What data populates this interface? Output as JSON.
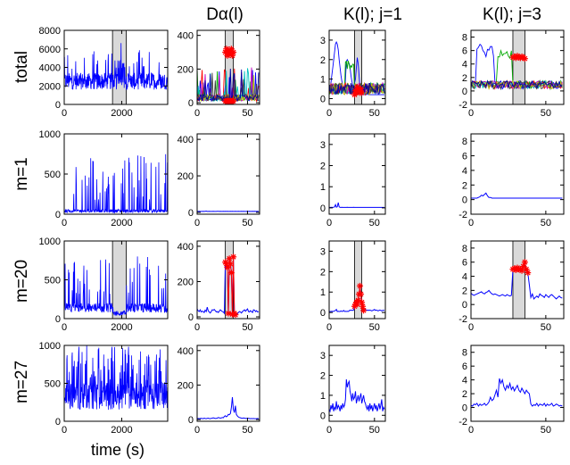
{
  "chart_data": {
    "type": "line",
    "column_titles": [
      "Dα(l)",
      "K(l); j=1",
      "K(l); j=3"
    ],
    "row_labels": [
      "total",
      "m=1",
      "m=20",
      "m=27"
    ],
    "xlabel": "time (s)",
    "colors": {
      "line": "#0000ff",
      "marker": "#ff0000",
      "shade": "#d9d9d9"
    },
    "grid": false,
    "columns": [
      {
        "name": "time",
        "xlim": [
          0,
          3600
        ],
        "xticks": [
          0,
          2000
        ],
        "ylims": [
          [
            0,
            8000
          ],
          [
            0,
            1000
          ],
          [
            0,
            1000
          ],
          [
            0,
            1000
          ]
        ],
        "yticks": [
          [
            0,
            2000,
            4000,
            6000,
            8000
          ],
          [
            0,
            500,
            1000
          ],
          [
            0,
            500,
            1000
          ],
          [
            0,
            500,
            1000
          ]
        ]
      },
      {
        "name": "D",
        "title_index": 0,
        "xlim": [
          0,
          62
        ],
        "xticks": [
          0,
          50
        ],
        "ylim": [
          -10,
          430
        ],
        "yticks": [
          0,
          200,
          400
        ]
      },
      {
        "name": "K1",
        "title_index": 1,
        "xlim": [
          0,
          62
        ],
        "xticks": [
          0,
          50
        ],
        "ylim": [
          -0.3,
          3.5
        ],
        "yticks": [
          0,
          1,
          2,
          3
        ]
      },
      {
        "name": "K3",
        "title_index": 2,
        "xlim": [
          0,
          62
        ],
        "xticks": [
          0,
          50
        ],
        "ylim": [
          -2,
          9
        ],
        "yticks": [
          -2,
          0,
          2,
          4,
          6,
          8
        ]
      }
    ],
    "shaded_window": {
      "time_s": [
        1680,
        2160
      ],
      "index": [
        28,
        36
      ],
      "rows": [
        "total",
        "m=20"
      ]
    },
    "series": {
      "m1": {
        "D": [
          5,
          5,
          6,
          5,
          5,
          5,
          6,
          5,
          6,
          7,
          5,
          5,
          6,
          5,
          5,
          5,
          6,
          5,
          5,
          5,
          6,
          6,
          5,
          6,
          5,
          5,
          6,
          5,
          6,
          5,
          6,
          5,
          5,
          6,
          5,
          6,
          5,
          5,
          6,
          5,
          5,
          6,
          5,
          5,
          6,
          5,
          6,
          5,
          5,
          5,
          6,
          5,
          6,
          5,
          5,
          6,
          5,
          6,
          5,
          5,
          6,
          5
        ],
        "K1": [
          0.02,
          0.02,
          0.02,
          0.03,
          0.02,
          0.03,
          0.05,
          0.15,
          0.03,
          0.05,
          0.25,
          0.05,
          0.02,
          0.02,
          0.03,
          0.02,
          0.02,
          0.02,
          0.02,
          0.02,
          0.03,
          0.02,
          0.02,
          0.02,
          0.02,
          0.02,
          0.02,
          0.03,
          0.02,
          0.02,
          0.02,
          0.02,
          0.02,
          0.02,
          0.02,
          0.02,
          0.02,
          0.02,
          0.02,
          0.02,
          0.02,
          0.02,
          0.02,
          0.02,
          0.02,
          0.02,
          0.02,
          0.02,
          0.02,
          0.02,
          0.02,
          0.02,
          0.02,
          0.02,
          0.02,
          0.02,
          0.02,
          0.02,
          0.02,
          0.02,
          0.02,
          0.02
        ],
        "K3": [
          0.2,
          0.2,
          0.2,
          0.2,
          0.2,
          0.3,
          0.4,
          0.6,
          0.5,
          0.7,
          0.9,
          0.5,
          0.3,
          0.3,
          0.2,
          0.2,
          0.2,
          0.2,
          0.2,
          0.2,
          0.2,
          0.2,
          0.2,
          0.2,
          0.2,
          0.2,
          0.2,
          0.2,
          0.2,
          0.2,
          0.2,
          0.2,
          0.2,
          0.2,
          0.2,
          0.2,
          0.2,
          0.2,
          0.2,
          0.2,
          0.2,
          0.2,
          0.2,
          0.2,
          0.2,
          0.2,
          0.2,
          0.2,
          0.2,
          0.2,
          0.2,
          0.2,
          0.2,
          0.2,
          0.2,
          0.2,
          0.2,
          0.2,
          0.2,
          0.2,
          0.2,
          0.2
        ]
      },
      "m20": {
        "D": [
          45,
          35,
          30,
          40,
          28,
          32,
          30,
          25,
          38,
          30,
          55,
          35,
          28,
          22,
          30,
          40,
          38,
          42,
          35,
          28,
          30,
          25,
          32,
          40,
          35,
          30,
          28,
          20,
          310,
          300,
          280,
          20,
          330,
          300,
          250,
          15,
          340,
          20,
          12,
          15,
          18,
          25,
          30,
          28,
          22,
          30,
          35,
          40,
          32,
          38,
          45,
          30,
          28,
          35,
          30,
          25,
          40,
          38,
          30,
          35,
          28,
          30
        ],
        "K1": [
          0.05,
          0.05,
          0.05,
          0.06,
          0.05,
          0.06,
          0.08,
          0.1,
          0.15,
          0.05,
          0.06,
          0.05,
          0.05,
          0.08,
          0.05,
          0.06,
          0.1,
          0.05,
          0.06,
          0.05,
          0.06,
          0.05,
          0.08,
          0.12,
          0.1,
          0.12,
          0.1,
          0.12,
          0.3,
          0.4,
          0.5,
          0.4,
          0.6,
          0.9,
          1.3,
          0.9,
          0.5,
          0.3,
          0.1,
          0.12,
          0.15,
          0.12,
          0.1,
          0.12,
          0.1,
          0.12,
          0.1,
          0.08,
          0.1,
          0.12,
          0.15,
          0.1,
          0.12,
          0.1,
          0.08,
          0.1,
          0.12,
          0.1,
          0.08,
          0.1,
          0.1,
          0.1
        ],
        "K3": [
          1.6,
          1.4,
          1.3,
          1.4,
          1.5,
          1.6,
          1.7,
          1.8,
          1.6,
          1.5,
          1.7,
          1.8,
          2.0,
          1.7,
          1.5,
          1.4,
          1.5,
          1.4,
          1.3,
          1.2,
          1.3,
          1.4,
          1.3,
          1.2,
          1.4,
          1.3,
          1.2,
          1.3,
          5.0,
          5.1,
          4.9,
          5.2,
          5.0,
          5.0,
          4.8,
          5.4,
          6.0,
          5.0,
          4.5,
          2.8,
          1.0,
          1.5,
          0.8,
          1.0,
          1.2,
          1.0,
          1.5,
          1.3,
          1.2,
          1.0,
          1.4,
          1.2,
          1.0,
          1.3,
          1.4,
          1.2,
          1.0,
          0.8,
          1.0,
          1.2,
          1.0,
          0.9
        ]
      },
      "m27": {
        "D": [
          5,
          6,
          5,
          6,
          7,
          6,
          5,
          8,
          6,
          5,
          7,
          8,
          6,
          5,
          7,
          8,
          10,
          8,
          6,
          7,
          8,
          12,
          10,
          8,
          9,
          12,
          10,
          18,
          22,
          16,
          20,
          30,
          28,
          35,
          70,
          130,
          60,
          40,
          80,
          30,
          20,
          15,
          12,
          10,
          8,
          7,
          9,
          8,
          7,
          6,
          8,
          7,
          6,
          5,
          6,
          5,
          6,
          5,
          5,
          5,
          6,
          5
        ],
        "K1": [
          0.3,
          0.2,
          0.5,
          0.3,
          0.6,
          0.2,
          0.4,
          0.3,
          0.7,
          0.3,
          0.5,
          0.4,
          0.2,
          0.5,
          0.3,
          0.6,
          0.4,
          0.5,
          0.8,
          1.8,
          1.4,
          1.6,
          1.7,
          1.2,
          1.0,
          0.7,
          1.1,
          0.8,
          0.9,
          1.2,
          0.6,
          0.8,
          1.0,
          0.7,
          0.9,
          1.1,
          0.6,
          0.8,
          1.0,
          0.7,
          0.6,
          0.4,
          0.3,
          0.5,
          0.2,
          0.6,
          0.3,
          0.5,
          0.2,
          0.4,
          0.6,
          0.3,
          0.5,
          0.2,
          0.4,
          0.6,
          0.3,
          0.5,
          0.8,
          0.2,
          0.4,
          0.3
        ],
        "K3": [
          0.3,
          0.2,
          0.5,
          0.4,
          0.6,
          0.2,
          0.5,
          0.3,
          0.4,
          0.6,
          0.3,
          0.5,
          0.8,
          1.5,
          1.0,
          1.2,
          1.8,
          2.5,
          1.5,
          4.2,
          3.5,
          4.0,
          3.0,
          2.5,
          3.2,
          2.8,
          3.5,
          2.6,
          3.0,
          2.4,
          2.8,
          3.2,
          2.5,
          2.2,
          2.8,
          2.4,
          2.0,
          2.5,
          2.2,
          2.0,
          0.5,
          0.2,
          0.4,
          0.3,
          0.6,
          0.2,
          0.5,
          0.4,
          0.3,
          0.6,
          0.2,
          0.5,
          0.3,
          0.4,
          0.6,
          0.2,
          0.3,
          0.5,
          0.4,
          0.2,
          0.3,
          0.2
        ]
      },
      "total_K1_peak": [
        0.3,
        0.5,
        0.8,
        1.2,
        1.6,
        2.0,
        2.4,
        2.8,
        2.9,
        2.8,
        2.5,
        2.0,
        1.6,
        1.2,
        0.9,
        0.7,
        0.5,
        0.4,
        1.0,
        1.9,
        2.0,
        1.9,
        1.8,
        1.6,
        1.2,
        0.9,
        0.7,
        0.6,
        0.8,
        1.0,
        1.6,
        2.1,
        1.8,
        1.2,
        0.6,
        0.4,
        0.3,
        0.2,
        0.2,
        0.2,
        0.2,
        0.2,
        0.3,
        0.2,
        0.2,
        0.2,
        0.2,
        0.2,
        0.2,
        0.2,
        0.2,
        0.2,
        0.2,
        0.2,
        0.2,
        0.2,
        0.2,
        0.2,
        0.2,
        0.2,
        0.2,
        0.2
      ]
    }
  }
}
